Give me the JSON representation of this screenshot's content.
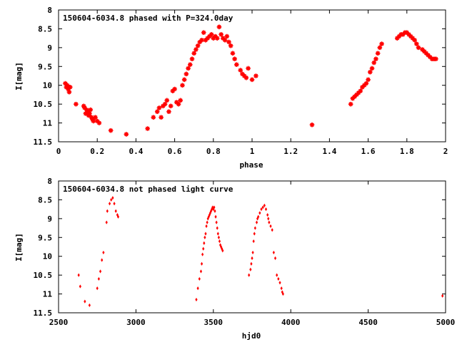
{
  "chart_data": [
    {
      "type": "scatter",
      "title": "150604-6034.8 phased with P=324.0day",
      "xlabel": "phase",
      "ylabel": "I[mag]",
      "xlim": [
        0,
        2
      ],
      "ylim": [
        11.5,
        8
      ],
      "y_inverted": true,
      "xticks": [
        0,
        0.2,
        0.4,
        0.6,
        0.8,
        1,
        1.2,
        1.4,
        1.6,
        1.8,
        2
      ],
      "xtick_labels": [
        "0",
        "0.2",
        "0.4",
        "0.6",
        "0.8",
        "1",
        "1.2",
        "1.4",
        "1.6",
        "1.8",
        "2"
      ],
      "yticks": [
        8,
        8.5,
        9,
        9.5,
        10,
        10.5,
        11,
        11.5
      ],
      "ytick_labels": [
        "8",
        "8.5",
        "9",
        "9.5",
        "10",
        "10.5",
        "11",
        "11.5"
      ],
      "grid": false,
      "legend": "none",
      "marker": "star",
      "color": "#ff0000",
      "series": [
        {
          "x": [
            0.035,
            0.04,
            0.045,
            0.05,
            0.055,
            0.06,
            0.09,
            0.13,
            0.135,
            0.14,
            0.145,
            0.15,
            0.155,
            0.16,
            0.165,
            0.17,
            0.175,
            0.18,
            0.19,
            0.2,
            0.21,
            0.27,
            0.35,
            0.46,
            0.49,
            0.51,
            0.52,
            0.53,
            0.54,
            0.55,
            0.56,
            0.57,
            0.58,
            0.59,
            0.6,
            0.61,
            0.62,
            0.63,
            0.64,
            0.65,
            0.66,
            0.67,
            0.68,
            0.69,
            0.7,
            0.71,
            0.72,
            0.73,
            0.74,
            0.75,
            0.76,
            0.77,
            0.78,
            0.79,
            0.8,
            0.81,
            0.82,
            0.83,
            0.84,
            0.85,
            0.86,
            0.87,
            0.88,
            0.89,
            0.9,
            0.91,
            0.92,
            0.94,
            0.95,
            0.96,
            0.97,
            0.98,
            1.0,
            1.02,
            1.31,
            1.51,
            1.52,
            1.53,
            1.54,
            1.55,
            1.56,
            1.57,
            1.58,
            1.59,
            1.6,
            1.61,
            1.62,
            1.63,
            1.64,
            1.65,
            1.66,
            1.67,
            1.75,
            1.76,
            1.77,
            1.78,
            1.79,
            1.8,
            1.81,
            1.82,
            1.83,
            1.84,
            1.85,
            1.86,
            1.88,
            1.89,
            1.9,
            1.91,
            1.92,
            1.93,
            1.94,
            1.95
          ],
          "y": [
            9.95,
            10.05,
            10.0,
            10.1,
            10.18,
            10.05,
            10.5,
            10.55,
            10.6,
            10.75,
            10.65,
            10.7,
            10.8,
            10.75,
            10.65,
            10.85,
            10.9,
            10.95,
            10.85,
            10.95,
            11.0,
            11.2,
            11.3,
            11.15,
            10.85,
            10.7,
            10.6,
            10.85,
            10.55,
            10.5,
            10.4,
            10.7,
            10.55,
            10.15,
            10.1,
            10.45,
            10.5,
            10.4,
            10.0,
            9.85,
            9.7,
            9.55,
            9.45,
            9.3,
            9.15,
            9.05,
            8.95,
            8.85,
            8.8,
            8.6,
            8.8,
            8.75,
            8.7,
            8.65,
            8.75,
            8.7,
            8.75,
            8.45,
            8.65,
            8.75,
            8.8,
            8.7,
            8.85,
            8.95,
            9.15,
            9.3,
            9.45,
            9.6,
            9.7,
            9.75,
            9.8,
            9.55,
            9.85,
            9.75,
            11.05,
            10.5,
            10.35,
            10.3,
            10.25,
            10.2,
            10.15,
            10.05,
            10.0,
            9.95,
            9.85,
            9.65,
            9.55,
            9.4,
            9.3,
            9.15,
            9.0,
            8.9,
            8.75,
            8.7,
            8.65,
            8.65,
            8.6,
            8.6,
            8.65,
            8.7,
            8.75,
            8.8,
            8.9,
            9.0,
            9.05,
            9.1,
            9.15,
            9.2,
            9.25,
            9.3,
            9.3,
            9.3
          ]
        }
      ]
    },
    {
      "type": "scatter",
      "title": "150604-6034.8 not phased light curve",
      "xlabel": "hjd0",
      "ylabel": "I[mag]",
      "xlim": [
        2500,
        5000
      ],
      "ylim": [
        11.5,
        8
      ],
      "y_inverted": true,
      "xticks": [
        2500,
        3000,
        3500,
        4000,
        4500,
        5000
      ],
      "xtick_labels": [
        "2500",
        "3000",
        "3500",
        "4000",
        "4500",
        "5000"
      ],
      "yticks": [
        8,
        8.5,
        9,
        9.5,
        10,
        10.5,
        11,
        11.5
      ],
      "ytick_labels": [
        "8",
        "8.5",
        "9",
        "9.5",
        "10",
        "10.5",
        "11",
        "11.5"
      ],
      "grid": false,
      "legend": "none",
      "marker": "diamond",
      "color": "#ff0000",
      "series": [
        {
          "x": [
            2630,
            2640,
            2670,
            2700,
            2750,
            2760,
            2770,
            2780,
            2790,
            2810,
            2815,
            2830,
            2840,
            2850,
            2860,
            2870,
            2880,
            2885,
            3390,
            3400,
            3410,
            3420,
            3425,
            3430,
            3435,
            3440,
            3445,
            3450,
            3455,
            3460,
            3465,
            3470,
            3475,
            3480,
            3485,
            3490,
            3495,
            3500,
            3505,
            3510,
            3515,
            3520,
            3525,
            3530,
            3535,
            3540,
            3545,
            3550,
            3555,
            3560,
            3730,
            3740,
            3745,
            3750,
            3755,
            3760,
            3765,
            3770,
            3780,
            3785,
            3790,
            3800,
            3810,
            3820,
            3830,
            3840,
            3850,
            3855,
            3860,
            3870,
            3880,
            3890,
            3900,
            3910,
            3920,
            3930,
            3940,
            3945,
            3950,
            4980
          ],
          "y": [
            10.5,
            10.8,
            11.2,
            11.3,
            10.85,
            10.6,
            10.4,
            10.1,
            9.9,
            9.1,
            8.8,
            8.6,
            8.5,
            8.45,
            8.6,
            8.8,
            8.9,
            8.95,
            11.15,
            10.85,
            10.6,
            10.4,
            10.2,
            9.95,
            9.8,
            9.65,
            9.5,
            9.4,
            9.2,
            9.1,
            9.0,
            8.95,
            8.9,
            8.85,
            8.8,
            8.75,
            8.7,
            8.75,
            8.7,
            8.8,
            8.95,
            9.1,
            9.25,
            9.4,
            9.5,
            9.6,
            9.7,
            9.75,
            9.8,
            9.85,
            10.5,
            10.35,
            10.2,
            10.05,
            9.9,
            9.6,
            9.4,
            9.25,
            9.1,
            9.0,
            8.95,
            8.85,
            8.75,
            8.7,
            8.65,
            8.75,
            8.9,
            9.0,
            9.1,
            9.2,
            9.3,
            9.9,
            10.05,
            10.5,
            10.6,
            10.7,
            10.85,
            10.95,
            11.0,
            11.05
          ]
        }
      ]
    }
  ]
}
